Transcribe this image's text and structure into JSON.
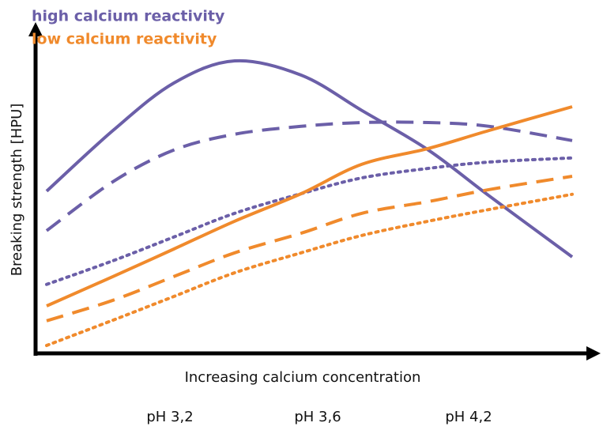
{
  "chart_data": {
    "type": "line",
    "legend": [
      {
        "label": "high calcium reactivity",
        "color": "#6b5fa8"
      },
      {
        "label": "low calcium reactivity",
        "color": "#f08a2c"
      }
    ],
    "y_label": "Breaking strength [HPU]",
    "x_label": "Increasing calcium concentration",
    "annotations": [
      "pH 3,2",
      "pH 3,6",
      "pH 4,2"
    ],
    "x": [
      2,
      14,
      25,
      36,
      48,
      59,
      71,
      82,
      97
    ],
    "xlim": [
      0,
      100
    ],
    "ylim": [
      0,
      100
    ],
    "series": [
      {
        "color": "#6b5fa8",
        "dash": "solid",
        "values": [
          51.3,
          70.5,
          85.5,
          92.5,
          88,
          76.8,
          64.3,
          49.8,
          30.5
        ]
      },
      {
        "color": "#6b5fa8",
        "dash": "dashed",
        "values": [
          38.8,
          54.3,
          64.3,
          69.3,
          71.8,
          73,
          73,
          71.8,
          67.3
        ]
      },
      {
        "color": "#6b5fa8",
        "dash": "dotted",
        "values": [
          21.8,
          29.3,
          36.8,
          44.3,
          50.5,
          55.5,
          58.5,
          60.5,
          61.8
        ]
      },
      {
        "color": "#f08a2c",
        "dash": "solid",
        "values": [
          15,
          24.3,
          33,
          41.8,
          50.5,
          59.8,
          64.8,
          70.5,
          78
        ]
      },
      {
        "color": "#f08a2c",
        "dash": "dashed",
        "values": [
          10.3,
          16.8,
          24.3,
          31.8,
          38,
          44.3,
          48,
          51.8,
          56
        ]
      },
      {
        "color": "#f08a2c",
        "dash": "dotted",
        "values": [
          2.5,
          10.5,
          18,
          25.5,
          31.8,
          37.3,
          41.8,
          45.5,
          50.3
        ]
      }
    ]
  }
}
